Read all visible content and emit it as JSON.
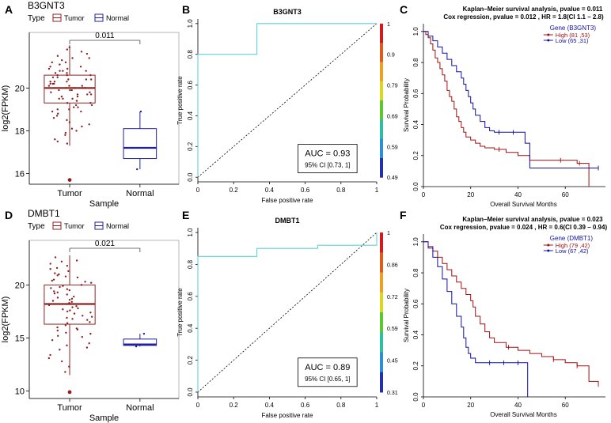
{
  "chart_data": [
    {
      "panel": "A",
      "type": "box",
      "title": "B3GNT3",
      "legend_title": "Type",
      "legend": [
        "Tumor",
        "Normal"
      ],
      "xlabel": "Sample",
      "ylabel": "log2(FPKM)",
      "categories": [
        "Tumor",
        "Normal"
      ],
      "yticks": [
        16,
        18,
        20
      ],
      "ylim": [
        15.5,
        22.6
      ],
      "pvalue_label": "0.011",
      "colors": {
        "Tumor": "#8b2323",
        "Normal": "#2020a0"
      },
      "boxes": [
        {
          "name": "Tumor",
          "whisker_low": 17.3,
          "q1": 19.3,
          "median": 20.0,
          "q3": 20.6,
          "whisker_high": 22.0,
          "outliers": [
            15.7
          ]
        },
        {
          "name": "Normal",
          "whisker_low": 16.2,
          "q1": 16.7,
          "median": 17.2,
          "q3": 18.1,
          "whisker_high": 18.9,
          "outliers": []
        }
      ],
      "points_tumor": [
        20.1,
        19.5,
        21.2,
        18.8,
        20.6,
        19.9,
        20.3,
        21.6,
        19.1,
        17.9,
        20.8,
        20.0,
        19.4,
        21.0,
        18.4,
        20.5,
        19.7,
        20.2,
        21.4,
        19.0,
        17.6,
        20.9,
        19.8,
        20.4,
        18.9,
        21.8,
        19.3,
        20.7,
        20.0,
        18.1,
        19.6,
        21.1,
        20.3,
        19.2,
        17.4,
        20.6,
        19.9,
        21.3,
        18.6,
        20.1,
        19.5,
        20.8,
        20.2,
        18.3,
        21.5,
        19.7,
        20.4,
        19.0,
        20.0,
        17.8,
        21.7,
        19.4,
        20.5,
        18.7,
        20.9,
        19.8,
        20.1,
        21.2,
        19.1,
        18.0,
        20.6,
        19.6,
        20.3,
        21.9,
        18.5,
        20.0,
        19.3,
        20.7,
        19.9,
        17.5,
        21.0,
        20.2,
        19.5,
        18.2,
        20.8,
        19.7,
        21.4,
        20.4,
        18.9,
        19.2
      ],
      "points_normal": [
        18.9,
        17.2,
        16.2
      ]
    },
    {
      "panel": "B",
      "type": "roc",
      "title": "B3GNT3",
      "xlabel": "False positive rate",
      "ylabel": "True positive rate",
      "ticks": [
        0,
        0.2,
        0.4,
        0.6,
        0.8,
        1
      ],
      "tick_labels": [
        "0",
        "0.2",
        "0.4",
        "0.6",
        "0.8",
        "1"
      ],
      "yticks": [
        0,
        0.2,
        0.4,
        0.6,
        0.8,
        1
      ],
      "ytick_labels": [
        "0.0",
        "0.2",
        "0.4",
        "0.6",
        "0.8",
        "1.0"
      ],
      "curve": [
        [
          0,
          0
        ],
        [
          0,
          0.8
        ],
        [
          0.33,
          0.8
        ],
        [
          0.33,
          1
        ],
        [
          1,
          1
        ]
      ],
      "auc_label": "AUC = 0.93",
      "ci_label": "95% CI [0.73, 1]",
      "colorbar_ticks": [
        "1",
        "0.9",
        "0.79",
        "0.69",
        "0.59",
        "0.49"
      ]
    },
    {
      "panel": "C",
      "type": "line",
      "title": "Kaplan–Meier survival analysis, pvalue =  0.011",
      "subtitle": "Cox regression,  pvalue =  0.012 , HR = 1.8(CI 1.1 – 2.8)",
      "xlabel": "Overall Survival Months",
      "ylabel": "Survival Probability",
      "xticks": [
        0,
        20,
        40,
        60
      ],
      "yticks": [
        0.0,
        0.2,
        0.4,
        0.6,
        0.8,
        1.0
      ],
      "ytick_labels": [
        "0.0",
        "0.2",
        "0.4",
        "0.6",
        "0.8",
        "1.0"
      ],
      "xlim": [
        0,
        77
      ],
      "ylim": [
        0,
        1.05
      ],
      "legend_title": "Gene (B3GNT3)",
      "series": [
        {
          "name": "High (81 ,53)",
          "color": "#a01010",
          "x": [
            0,
            1,
            2,
            3,
            4,
            5,
            6,
            7,
            8,
            9,
            10,
            11,
            12,
            13,
            14,
            15,
            16,
            17,
            18,
            20,
            22,
            24,
            26,
            28,
            30,
            35,
            40,
            45,
            55,
            65,
            70
          ],
          "y": [
            1,
            0.98,
            0.96,
            0.92,
            0.88,
            0.83,
            0.8,
            0.76,
            0.72,
            0.68,
            0.62,
            0.58,
            0.55,
            0.5,
            0.45,
            0.42,
            0.38,
            0.35,
            0.32,
            0.3,
            0.28,
            0.26,
            0.25,
            0.25,
            0.24,
            0.22,
            0.2,
            0.17,
            0.17,
            0.15,
            0.0
          ],
          "censor": [
            [
              32,
              0.24
            ],
            [
              58,
              0.17
            ],
            [
              66,
              0.15
            ]
          ]
        },
        {
          "name": "Low (65 ,31)",
          "color": "#1010a0",
          "x": [
            0,
            2,
            4,
            6,
            8,
            10,
            12,
            14,
            16,
            17,
            18,
            19,
            20,
            21,
            22,
            24,
            26,
            28,
            30,
            35,
            40,
            43,
            45,
            55,
            65,
            74
          ],
          "y": [
            1,
            0.97,
            0.94,
            0.9,
            0.86,
            0.82,
            0.78,
            0.74,
            0.7,
            0.66,
            0.62,
            0.58,
            0.54,
            0.5,
            0.46,
            0.42,
            0.38,
            0.36,
            0.35,
            0.35,
            0.35,
            0.28,
            0.12,
            0.12,
            0.12,
            0.12
          ],
          "censor": [
            [
              32,
              0.35
            ],
            [
              38,
              0.35
            ],
            [
              74,
              0.12
            ]
          ]
        }
      ]
    },
    {
      "panel": "D",
      "type": "box",
      "title": "DMBT1",
      "legend_title": "Type",
      "legend": [
        "Tumor",
        "Normal"
      ],
      "xlabel": "Sample",
      "ylabel": "log2(FPKM)",
      "categories": [
        "Tumor",
        "Normal"
      ],
      "yticks": [
        10,
        15,
        20
      ],
      "ylim": [
        9.3,
        24.2
      ],
      "pvalue_label": "0.021",
      "colors": {
        "Tumor": "#8b2323",
        "Normal": "#2020a0"
      },
      "boxes": [
        {
          "name": "Tumor",
          "whisker_low": 11.5,
          "q1": 16.3,
          "median": 18.2,
          "q3": 20.0,
          "whisker_high": 22.8,
          "outliers": [
            9.9
          ]
        },
        {
          "name": "Normal",
          "whisker_low": 14.2,
          "q1": 14.3,
          "median": 14.4,
          "q3": 14.9,
          "whisker_high": 15.4,
          "outliers": []
        }
      ],
      "points_tumor": [
        18.3,
        16.8,
        20.4,
        15.2,
        19.1,
        17.6,
        21.5,
        14.1,
        18.9,
        16.2,
        19.8,
        17.1,
        22.3,
        13.4,
        18.6,
        20.9,
        15.8,
        19.4,
        17.9,
        12.3,
        21.1,
        18.1,
        16.5,
        20.2,
        14.8,
        19.6,
        17.4,
        22.6,
        15.5,
        18.7,
        20.7,
        13.9,
        19.2,
        17.0,
        21.8,
        16.0,
        18.4,
        12.8,
        20.5,
        15.1,
        19.9,
        17.7,
        22.0,
        14.5,
        18.8,
        16.7,
        21.3,
        19.3,
        17.3,
        11.8,
        20.0,
        15.9,
        18.5,
        21.6,
        16.4,
        19.7,
        13.1,
        20.8,
        17.8,
        18.0,
        15.4,
        22.2,
        16.9,
        19.5,
        14.3,
        20.3,
        17.5,
        18.2,
        21.0,
        15.7
      ],
      "points_normal": [
        15.4,
        14.4,
        14.2
      ]
    },
    {
      "panel": "E",
      "type": "roc",
      "title": "DMBT1",
      "xlabel": "False positive rate",
      "ylabel": "True positive rate",
      "ticks": [
        0,
        0.2,
        0.4,
        0.6,
        0.8,
        1
      ],
      "tick_labels": [
        "0",
        "0.2",
        "0.4",
        "0.6",
        "0.8",
        "1"
      ],
      "yticks": [
        0,
        0.2,
        0.4,
        0.6,
        0.8,
        1
      ],
      "ytick_labels": [
        "0.0",
        "0.2",
        "0.4",
        "0.6",
        "0.8",
        "1.0"
      ],
      "curve": [
        [
          0,
          0
        ],
        [
          0,
          0.85
        ],
        [
          0.33,
          0.85
        ],
        [
          0.33,
          0.9
        ],
        [
          0.67,
          0.9
        ],
        [
          0.67,
          0.92
        ],
        [
          1,
          0.92
        ],
        [
          1,
          1
        ]
      ],
      "auc_label": "AUC = 0.89",
      "ci_label": "95% CI [0.65, 1]",
      "colorbar_ticks": [
        "1",
        "0.86",
        "0.72",
        "0.59",
        "0.45",
        "0.31"
      ]
    },
    {
      "panel": "F",
      "type": "line",
      "title": "Kaplan–Meier survival analysis, pvalue =  0.023",
      "subtitle": "Cox regression,  pvalue =  0.024 , HR = 0.6(CI 0.39 – 0.94)",
      "xlabel": "Overall Survival Months",
      "ylabel": "Survival Probability",
      "xticks": [
        0,
        20,
        40,
        60
      ],
      "yticks": [
        0.0,
        0.2,
        0.4,
        0.6,
        0.8,
        1.0
      ],
      "ytick_labels": [
        "0.0",
        "0.2",
        "0.4",
        "0.6",
        "0.8",
        "1.0"
      ],
      "xlim": [
        0,
        77
      ],
      "ylim": [
        0,
        1.05
      ],
      "legend_title": "Gene (DMBT1)",
      "series": [
        {
          "name": "High (79 ,42)",
          "color": "#a01010",
          "x": [
            0,
            2,
            4,
            6,
            8,
            10,
            12,
            14,
            16,
            18,
            20,
            21,
            22,
            24,
            26,
            28,
            30,
            35,
            40,
            45,
            50,
            55,
            60,
            65,
            70,
            74
          ],
          "y": [
            1,
            0.97,
            0.94,
            0.9,
            0.86,
            0.82,
            0.78,
            0.74,
            0.7,
            0.66,
            0.62,
            0.58,
            0.52,
            0.47,
            0.42,
            0.38,
            0.35,
            0.32,
            0.3,
            0.28,
            0.26,
            0.24,
            0.22,
            0.2,
            0.1,
            0.08
          ],
          "censor": [
            [
              36,
              0.32
            ],
            [
              55,
              0.24
            ],
            [
              65,
              0.2
            ],
            [
              74,
              0.08
            ]
          ]
        },
        {
          "name": "Low (67 ,42)",
          "color": "#1010a0",
          "x": [
            0,
            2,
            4,
            6,
            8,
            10,
            12,
            14,
            16,
            17,
            18,
            19,
            20,
            22,
            25,
            30,
            35,
            40,
            44,
            44.1
          ],
          "y": [
            1,
            0.96,
            0.9,
            0.84,
            0.76,
            0.68,
            0.6,
            0.52,
            0.45,
            0.38,
            0.32,
            0.28,
            0.25,
            0.22,
            0.22,
            0.22,
            0.22,
            0.22,
            0.22,
            0.0
          ],
          "censor": [
            [
              28,
              0.22
            ],
            [
              34,
              0.22
            ],
            [
              40,
              0.22
            ]
          ]
        }
      ]
    }
  ]
}
